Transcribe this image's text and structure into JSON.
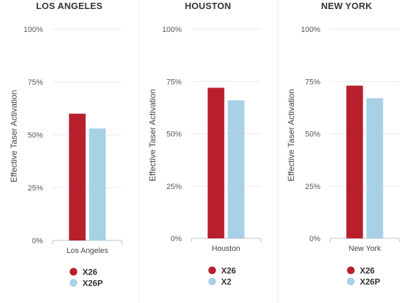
{
  "chart_data": [
    {
      "type": "bar",
      "title": "LOS ANGELES",
      "ylabel": "Effective Taser Activation",
      "categories": [
        "Los Angeles"
      ],
      "yticks": [
        "0%",
        "25%",
        "50%",
        "75%",
        "100%"
      ],
      "ylim": [
        0,
        100
      ],
      "grid": true,
      "legend_position": "bottom",
      "series": [
        {
          "name": "X26",
          "color": "#b81f2d",
          "values": [
            60
          ]
        },
        {
          "name": "X26P",
          "color": "#a8d0e6",
          "values": [
            53
          ]
        }
      ]
    },
    {
      "type": "bar",
      "title": "HOUSTON",
      "ylabel": "Effective Taser Activation",
      "categories": [
        "Houston"
      ],
      "yticks": [
        "0%",
        "25%",
        "50%",
        "75%",
        "100%"
      ],
      "ylim": [
        0,
        100
      ],
      "grid": true,
      "legend_position": "bottom",
      "series": [
        {
          "name": "X26",
          "color": "#b81f2d",
          "values": [
            72
          ]
        },
        {
          "name": "X2",
          "color": "#a8d0e6",
          "values": [
            66
          ]
        }
      ]
    },
    {
      "type": "bar",
      "title": "NEW YORK",
      "ylabel": "Effective Taser Activation",
      "categories": [
        "New York"
      ],
      "yticks": [
        "0%",
        "25%",
        "50%",
        "75%",
        "100%"
      ],
      "ylim": [
        0,
        100
      ],
      "grid": true,
      "legend_position": "bottom",
      "series": [
        {
          "name": "X26",
          "color": "#b81f2d",
          "values": [
            73
          ]
        },
        {
          "name": "X26P",
          "color": "#a8d0e6",
          "values": [
            67
          ]
        }
      ]
    }
  ]
}
